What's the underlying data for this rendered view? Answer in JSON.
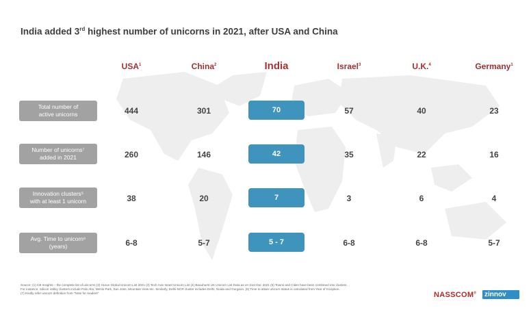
{
  "title": {
    "prefix": "India added 3",
    "sup": "rd",
    "suffix": " highest number of unicorns in 2021, after USA and China"
  },
  "columns": [
    {
      "name": "USA",
      "sup": "1"
    },
    {
      "name": "China",
      "sup": "2"
    },
    {
      "name": "India",
      "sup": ""
    },
    {
      "name": "Israel",
      "sup": "3"
    },
    {
      "name": "U.K.",
      "sup": "4"
    },
    {
      "name": "Germany",
      "sup": "1"
    }
  ],
  "rows": [
    {
      "label_line1": "Total number of",
      "label_line2": "active unicorns",
      "values": [
        "444",
        "301",
        "70",
        "57",
        "40",
        "23"
      ]
    },
    {
      "label_line1": "Number of unicorns⁷",
      "label_line2": "added in 2021",
      "values": [
        "260",
        "146",
        "42",
        "35",
        "22",
        "16"
      ]
    },
    {
      "label_line1": "Innovation clusters⁵",
      "label_line2": "with at least 1 unicorn",
      "values": [
        "38",
        "20",
        "7",
        "3",
        "6",
        "4"
      ]
    },
    {
      "label_line1": "Avg. Time to unicorn⁶",
      "label_line2": "(years)",
      "values": [
        "6-8",
        "5-7",
        "5 - 7",
        "6-8",
        "6-8",
        "5-7"
      ]
    }
  ],
  "footnote": {
    "line1": "Source: (1) CB Insights – the complete list of unicorns (2) Hurun Global Unicorn List 2021 (3) Tech Aviv Israel Unicorn List (4) Beauhurst UK Unicorn List Data as on 31st Dec 2021 (5) Towns and Cities have been combined into clusters.",
    "line2": "For instance, Silicon Valley clusters include Palo Alto, Menlo Park, San Jose, Mountain View etc. Similarly, Delhi-NCR cluster includes Delhi, Noida and Gurgaon. (6) Time to attain unicorn status is calculated from Year of Inception.",
    "line3": "(7) Kindly refer unicorn definition from \"Note for readers\""
  },
  "logos": {
    "nasscom": "NASSCOM",
    "nasscom_mark": "®",
    "zinnov": "zinnov"
  },
  "colors": {
    "header_red": "#a3302f",
    "india_blue": "#3f94bd",
    "label_gray": "#a2a2a2"
  }
}
